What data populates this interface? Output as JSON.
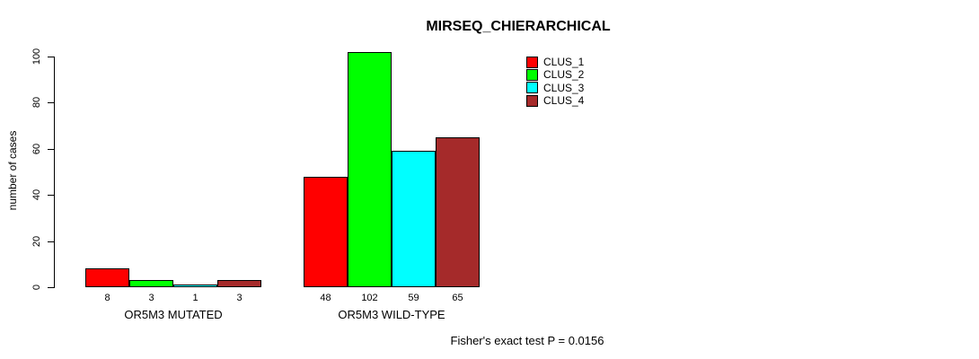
{
  "title": "MIRSEQ_CHIERARCHICAL",
  "footnote": "Fisher's exact test P = 0.0156",
  "chart_data": {
    "type": "bar",
    "title": "MIRSEQ_CHIERARCHICAL",
    "xlabel": "",
    "ylabel": "number of cases",
    "categories": [
      "OR5M3 MUTATED",
      "OR5M3 WILD-TYPE"
    ],
    "series": [
      {
        "name": "CLUS_1",
        "color": "#ff0000",
        "values": [
          8,
          48
        ]
      },
      {
        "name": "CLUS_2",
        "color": "#00ff00",
        "values": [
          3,
          102
        ]
      },
      {
        "name": "CLUS_3",
        "color": "#00ffff",
        "values": [
          1,
          59
        ]
      },
      {
        "name": "CLUS_4",
        "color": "#a52a2a",
        "values": [
          3,
          65
        ]
      }
    ],
    "bar_value_labels": [
      [
        "8",
        "3",
        "1",
        "3"
      ],
      [
        "48",
        "102",
        "59",
        "65"
      ]
    ],
    "yticks": [
      0,
      20,
      40,
      60,
      80,
      100
    ],
    "ylim": [
      0,
      102
    ],
    "grid": false,
    "legend_position": "top-right",
    "annotation": "Fisher's exact test P = 0.0156"
  }
}
